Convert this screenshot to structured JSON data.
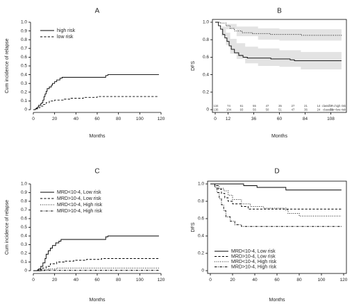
{
  "panels": [
    {
      "id": "A",
      "label": "A",
      "chart_data": {
        "type": "line",
        "step": true,
        "xlabel": "Months",
        "ylabel": "Cum incidence of relapse",
        "xlim": [
          0,
          120
        ],
        "ylim": [
          0,
          1
        ],
        "xticks": [
          0,
          20,
          40,
          60,
          80,
          100,
          120
        ],
        "yticks": [
          0,
          0.1,
          0.2,
          0.3,
          0.4,
          0.5,
          0.6,
          0.7,
          0.8,
          0.9,
          1.0
        ],
        "legend_position": "top-left",
        "grid": false,
        "series": [
          {
            "name": "high risk",
            "dash": "solid",
            "points": [
              [
                0,
                0
              ],
              [
                2,
                0.01
              ],
              [
                4,
                0.03
              ],
              [
                5,
                0.05
              ],
              [
                7,
                0.07
              ],
              [
                8,
                0.08
              ],
              [
                9,
                0.11
              ],
              [
                10,
                0.15
              ],
              [
                11,
                0.18
              ],
              [
                12,
                0.21
              ],
              [
                13,
                0.24
              ],
              [
                15,
                0.26
              ],
              [
                17,
                0.28
              ],
              [
                18,
                0.3
              ],
              [
                20,
                0.32
              ],
              [
                22,
                0.34
              ],
              [
                25,
                0.36
              ],
              [
                27,
                0.37
              ],
              [
                67,
                0.37
              ],
              [
                68,
                0.39
              ],
              [
                70,
                0.4
              ],
              [
                118,
                0.4
              ]
            ]
          },
          {
            "name": "low risk",
            "dash": "dashed",
            "points": [
              [
                0,
                0
              ],
              [
                3,
                0.02
              ],
              [
                6,
                0.04
              ],
              [
                9,
                0.06
              ],
              [
                12,
                0.08
              ],
              [
                15,
                0.1
              ],
              [
                20,
                0.11
              ],
              [
                28,
                0.12
              ],
              [
                35,
                0.13
              ],
              [
                47,
                0.14
              ],
              [
                60,
                0.15
              ],
              [
                118,
                0.15
              ]
            ]
          }
        ]
      }
    },
    {
      "id": "B",
      "label": "B",
      "chart_data": {
        "type": "line",
        "step": true,
        "xlabel": "Months",
        "ylabel": "DFS",
        "xlim": [
          0,
          120
        ],
        "ylim": [
          0,
          1
        ],
        "xticks": [
          0,
          12,
          36,
          60,
          84,
          108
        ],
        "yticks": [
          0,
          0.2,
          0.4,
          0.6,
          0.8,
          1.0
        ],
        "legend_position": "none",
        "grid": false,
        "series": [
          {
            "name": "",
            "dash": "solid",
            "band": {
              "upper": [
                [
                  0,
                  1
                ],
                [
                  6,
                  0.95
                ],
                [
                  10,
                  0.88
                ],
                [
                  14,
                  0.81
                ],
                [
                  20,
                  0.76
                ],
                [
                  28,
                  0.72
                ],
                [
                  40,
                  0.7
                ],
                [
                  60,
                  0.68
                ],
                [
                  80,
                  0.66
                ],
                [
                  118,
                  0.66
                ]
              ],
              "lower": [
                [
                  0,
                  1
                ],
                [
                  6,
                  0.84
                ],
                [
                  10,
                  0.74
                ],
                [
                  14,
                  0.64
                ],
                [
                  20,
                  0.58
                ],
                [
                  28,
                  0.53
                ],
                [
                  40,
                  0.5
                ],
                [
                  60,
                  0.49
                ],
                [
                  80,
                  0.46
                ],
                [
                  118,
                  0.45
                ]
              ]
            },
            "points": [
              [
                0,
                1
              ],
              [
                3,
                0.96
              ],
              [
                5,
                0.92
              ],
              [
                7,
                0.86
              ],
              [
                9,
                0.82
              ],
              [
                11,
                0.78
              ],
              [
                13,
                0.73
              ],
              [
                15,
                0.69
              ],
              [
                18,
                0.65
              ],
              [
                22,
                0.62
              ],
              [
                26,
                0.6
              ],
              [
                30,
                0.59
              ],
              [
                45,
                0.59
              ],
              [
                52,
                0.58
              ],
              [
                70,
                0.57
              ],
              [
                74,
                0.56
              ],
              [
                118,
                0.56
              ]
            ]
          },
          {
            "name": "",
            "dash": "dotted",
            "band": {
              "upper": [
                [
                  0,
                  1
                ],
                [
                  10,
                  0.98
                ],
                [
                  20,
                  0.95
                ],
                [
                  40,
                  0.93
                ],
                [
                  60,
                  0.92
                ],
                [
                  118,
                  0.92
                ]
              ],
              "lower": [
                [
                  0,
                  1
                ],
                [
                  10,
                  0.92
                ],
                [
                  20,
                  0.84
                ],
                [
                  40,
                  0.8
                ],
                [
                  60,
                  0.79
                ],
                [
                  118,
                  0.78
                ]
              ]
            },
            "points": [
              [
                0,
                1
              ],
              [
                5,
                0.99
              ],
              [
                10,
                0.96
              ],
              [
                14,
                0.93
              ],
              [
                18,
                0.9
              ],
              [
                25,
                0.88
              ],
              [
                35,
                0.87
              ],
              [
                52,
                0.86
              ],
              [
                70,
                0.86
              ],
              [
                80,
                0.85
              ],
              [
                118,
                0.85
              ]
            ]
          }
        ],
        "risk_table": {
          "times": [
            0,
            12,
            24,
            36,
            48,
            60,
            72,
            84,
            96,
            108
          ],
          "rows": [
            {
              "label": "classifier=high risk",
              "values": [
                "134",
                "74",
                "61",
                "55",
                "47",
                "35",
                "27",
                "21",
                "14",
                "7"
              ]
            },
            {
              "label": "classifier=low risk",
              "values": [
                "136",
                "104",
                "93",
                "56",
                "50",
                "51",
                "47",
                "36",
                "24",
                "13"
              ]
            }
          ]
        }
      }
    },
    {
      "id": "C",
      "label": "C",
      "chart_data": {
        "type": "line",
        "step": true,
        "xlabel": "Months",
        "ylabel": "Cum incidence of relapse",
        "xlim": [
          0,
          120
        ],
        "ylim": [
          0,
          1
        ],
        "xticks": [
          0,
          20,
          40,
          60,
          80,
          100,
          120
        ],
        "yticks": [
          0,
          0.1,
          0.2,
          0.3,
          0.4,
          0.5,
          0.6,
          0.7,
          0.8,
          0.9,
          1.0
        ],
        "legend_position": "top-left",
        "grid": false,
        "series": [
          {
            "name": "MRD<10-4, Low risk",
            "dash": "solid",
            "points": [
              [
                0,
                0
              ],
              [
                5,
                0.02
              ],
              [
                7,
                0.05
              ],
              [
                9,
                0.09
              ],
              [
                11,
                0.14
              ],
              [
                12,
                0.19
              ],
              [
                14,
                0.23
              ],
              [
                16,
                0.26
              ],
              [
                18,
                0.29
              ],
              [
                21,
                0.32
              ],
              [
                24,
                0.34
              ],
              [
                26,
                0.36
              ],
              [
                66,
                0.36
              ],
              [
                68,
                0.39
              ],
              [
                70,
                0.4
              ],
              [
                118,
                0.4
              ]
            ]
          },
          {
            "name": "MRD>10-4, Low risk",
            "dash": "dashed",
            "points": [
              [
                0,
                0
              ],
              [
                4,
                0.01
              ],
              [
                8,
                0.03
              ],
              [
                12,
                0.05
              ],
              [
                16,
                0.08
              ],
              [
                22,
                0.1
              ],
              [
                30,
                0.11
              ],
              [
                38,
                0.12
              ],
              [
                50,
                0.13
              ],
              [
                64,
                0.14
              ],
              [
                118,
                0.14
              ]
            ]
          },
          {
            "name": "MRD<10-4, High risk",
            "dash": "dotted",
            "points": [
              [
                0,
                0
              ],
              [
                8,
                0.01
              ],
              [
                14,
                0.02
              ],
              [
                22,
                0.03
              ],
              [
                118,
                0.03
              ]
            ]
          },
          {
            "name": "MRD>10-4, High risk",
            "dash": "dashdot",
            "points": [
              [
                0,
                0
              ],
              [
                10,
                0.005
              ],
              [
                118,
                0.005
              ]
            ]
          }
        ]
      }
    },
    {
      "id": "D",
      "label": "D",
      "chart_data": {
        "type": "line",
        "step": true,
        "xlabel": "Months",
        "ylabel": "DFS",
        "xlim": [
          0,
          120
        ],
        "ylim": [
          0,
          1
        ],
        "xticks": [
          0,
          20,
          40,
          60,
          80,
          100,
          120
        ],
        "yticks": [
          0,
          0.2,
          0.4,
          0.6,
          0.8,
          1.0
        ],
        "legend_position": "bottom-left",
        "grid": false,
        "series": [
          {
            "name": "MRD<10-4, Low risk",
            "dash": "solid",
            "points": [
              [
                0,
                1
              ],
              [
                30,
                0.98
              ],
              [
                42,
                0.96
              ],
              [
                68,
                0.93
              ],
              [
                118,
                0.93
              ]
            ]
          },
          {
            "name": "MRD>10-4, Low risk",
            "dash": "dashed",
            "points": [
              [
                0,
                1
              ],
              [
                4,
                0.98
              ],
              [
                7,
                0.94
              ],
              [
                10,
                0.89
              ],
              [
                13,
                0.84
              ],
              [
                16,
                0.8
              ],
              [
                20,
                0.77
              ],
              [
                28,
                0.74
              ],
              [
                34,
                0.71
              ],
              [
                118,
                0.71
              ]
            ]
          },
          {
            "name": "MRD<10-4, High risk",
            "dash": "dotted",
            "points": [
              [
                0,
                1
              ],
              [
                4,
                0.98
              ],
              [
                8,
                0.95
              ],
              [
                12,
                0.92
              ],
              [
                16,
                0.87
              ],
              [
                20,
                0.82
              ],
              [
                28,
                0.77
              ],
              [
                36,
                0.74
              ],
              [
                48,
                0.72
              ],
              [
                68,
                0.7
              ],
              [
                70,
                0.66
              ],
              [
                80,
                0.63
              ],
              [
                118,
                0.63
              ]
            ]
          },
          {
            "name": "MRD>10-4, High risk",
            "dash": "dashdot",
            "points": [
              [
                0,
                1
              ],
              [
                4,
                0.96
              ],
              [
                6,
                0.9
              ],
              [
                8,
                0.83
              ],
              [
                10,
                0.76
              ],
              [
                12,
                0.69
              ],
              [
                14,
                0.62
              ],
              [
                18,
                0.57
              ],
              [
                22,
                0.53
              ],
              [
                28,
                0.51
              ],
              [
                118,
                0.51
              ]
            ]
          }
        ]
      }
    }
  ]
}
